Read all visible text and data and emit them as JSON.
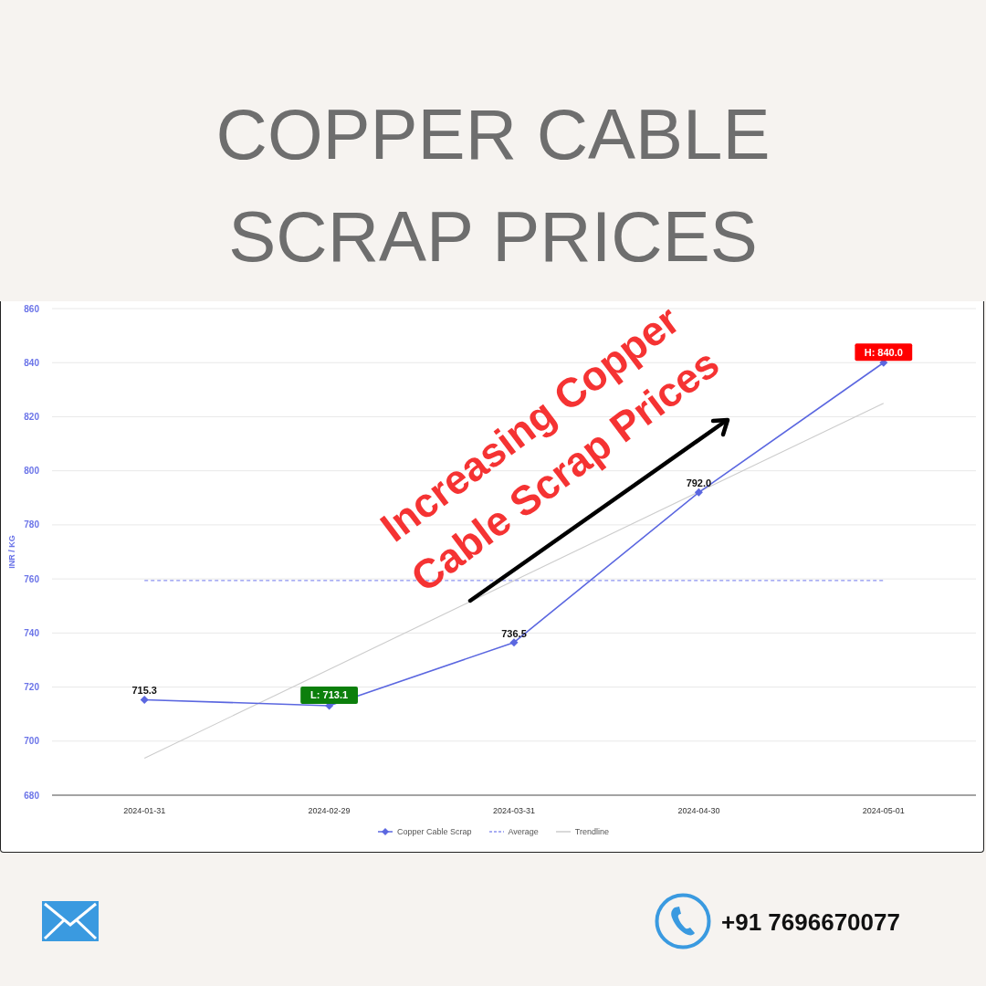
{
  "chart_data": {
    "type": "line",
    "title": "COPPER CABLE SCRAP PRICES",
    "ylabel": "INR / KG",
    "categories": [
      "2024-01-31",
      "2024-02-29",
      "2024-03-31",
      "2024-04-30",
      "2024-05-01"
    ],
    "series": [
      {
        "name": "Copper Cable Scrap",
        "color": "#5b67e0",
        "values": [
          715.3,
          713.1,
          736.5,
          792.0,
          840.0
        ],
        "marker": "diamond",
        "line_style": "solid",
        "value_labels": [
          "715.3",
          "L: 713.1",
          "736.5",
          "792.0",
          "H: 840.0"
        ]
      },
      {
        "name": "Average",
        "color": "#8c93f0",
        "values": [
          759.4,
          759.4,
          759.4,
          759.4,
          759.4
        ],
        "marker": "none",
        "line_style": "dashed"
      },
      {
        "name": "Trendline",
        "color": "#cccccc",
        "values": [
          693.7,
          726.5,
          759.4,
          792.2,
          825.0
        ],
        "marker": "none",
        "line_style": "solid"
      }
    ],
    "ylim": [
      680,
      860
    ],
    "yticks": [
      680,
      700,
      720,
      740,
      760,
      780,
      800,
      820,
      840,
      860
    ],
    "grid": "y",
    "legend": "bottom",
    "annotations": [
      "Increasing Copper Cable Scrap Prices",
      "+91 7696670077"
    ]
  }
}
